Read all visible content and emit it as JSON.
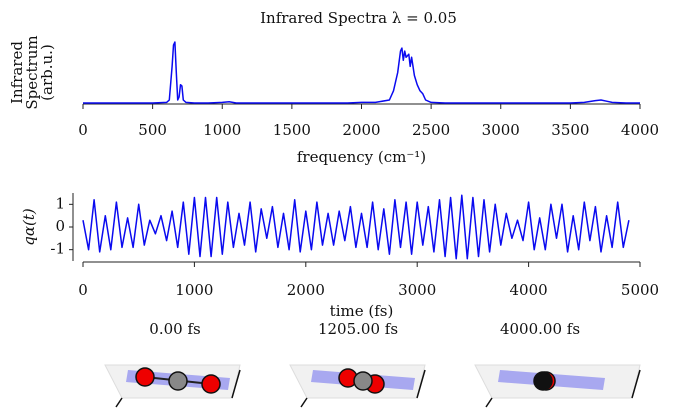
{
  "chart_data": [
    {
      "type": "line",
      "title": "Infrared Spectra λ = 0.05",
      "ylabel": [
        "Infrared",
        "Spectrum",
        "(arb.u.)"
      ],
      "xlabel": "frequency (cm⁻¹)",
      "color": "#0a0af0",
      "x": [
        0,
        100,
        200,
        300,
        400,
        500,
        600,
        620,
        640,
        650,
        660,
        670,
        680,
        690,
        700,
        710,
        720,
        740,
        800,
        900,
        1000,
        1050,
        1100,
        1200,
        1300,
        1400,
        1500,
        1600,
        1700,
        1800,
        1900,
        2000,
        2100,
        2200,
        2230,
        2260,
        2280,
        2290,
        2300,
        2310,
        2320,
        2340,
        2350,
        2360,
        2380,
        2400,
        2420,
        2440,
        2460,
        2500,
        2600,
        2700,
        2800,
        2900,
        3000,
        3100,
        3200,
        3300,
        3400,
        3500,
        3600,
        3680,
        3720,
        3760,
        3800,
        3900,
        4000
      ],
      "values": [
        0,
        0,
        0,
        0,
        0,
        0,
        0.01,
        0.05,
        0.6,
        0.95,
        1.0,
        0.5,
        0.05,
        0.1,
        0.3,
        0.28,
        0.05,
        0.01,
        0,
        0,
        0.01,
        0.02,
        0,
        0,
        0,
        0,
        0,
        0,
        0,
        0,
        0,
        0.01,
        0.01,
        0.05,
        0.2,
        0.5,
        0.85,
        0.9,
        0.7,
        0.85,
        0.75,
        0.8,
        0.6,
        0.75,
        0.45,
        0.3,
        0.2,
        0.15,
        0.05,
        0.01,
        0,
        0,
        0,
        0,
        0,
        0,
        0,
        0,
        0,
        0,
        0.01,
        0.04,
        0.05,
        0.03,
        0.01,
        0,
        0
      ],
      "xlim": [
        0,
        4000
      ],
      "xticks": [
        0,
        500,
        1000,
        1500,
        2000,
        2500,
        3000,
        3500,
        4000
      ],
      "ylim": [
        0,
        1
      ]
    },
    {
      "type": "line",
      "ylabel": "qα(t)",
      "xlabel": "time (fs)",
      "color": "#0a0af0",
      "x": [
        0,
        50,
        100,
        150,
        200,
        250,
        300,
        350,
        400,
        450,
        500,
        550,
        600,
        650,
        700,
        750,
        800,
        850,
        900,
        950,
        1000,
        1050,
        1100,
        1150,
        1200,
        1250,
        1300,
        1350,
        1400,
        1450,
        1500,
        1550,
        1600,
        1650,
        1700,
        1750,
        1800,
        1850,
        1900,
        1950,
        2000,
        2050,
        2100,
        2150,
        2200,
        2250,
        2300,
        2350,
        2400,
        2450,
        2500,
        2550,
        2600,
        2650,
        2700,
        2750,
        2800,
        2850,
        2900,
        2950,
        3000,
        3050,
        3100,
        3150,
        3200,
        3250,
        3300,
        3350,
        3400,
        3450,
        3500,
        3550,
        3600,
        3650,
        3700,
        3750,
        3800,
        3850,
        3900,
        3950,
        4000,
        4050,
        4100,
        4150,
        4200,
        4250,
        4300,
        4350,
        4400,
        4450,
        4500,
        4550,
        4600,
        4650,
        4700,
        4750,
        4800,
        4850,
        4900
      ],
      "values": [
        0.3,
        -1.0,
        1.2,
        -1.1,
        0.5,
        -1.0,
        1.1,
        -0.9,
        0.4,
        -0.9,
        1.0,
        -0.8,
        0.3,
        -0.3,
        0.5,
        -0.6,
        0.7,
        -0.9,
        1.1,
        -1.2,
        1.3,
        -1.3,
        1.3,
        -1.3,
        1.3,
        -1.2,
        1.1,
        -0.9,
        0.6,
        -0.8,
        1.1,
        -1.1,
        0.8,
        -0.5,
        0.9,
        -0.9,
        0.6,
        -1.0,
        1.2,
        -1.1,
        0.7,
        -1.0,
        1.1,
        -0.8,
        0.6,
        -0.8,
        0.7,
        -0.6,
        0.9,
        -0.9,
        0.6,
        -0.9,
        1.1,
        -1.0,
        0.8,
        -1.2,
        1.2,
        -0.9,
        1.1,
        -1.2,
        1.1,
        -0.8,
        0.9,
        -1.1,
        1.2,
        -1.3,
        1.3,
        -1.4,
        1.4,
        -1.4,
        1.3,
        -1.3,
        1.2,
        -1.1,
        1.0,
        -0.8,
        0.6,
        -0.5,
        0.3,
        -0.6,
        1.1,
        -1.0,
        0.4,
        -1.0,
        1.0,
        -0.5,
        1.0,
        -1.1,
        0.5,
        -1.0,
        1.1,
        -0.6,
        0.9,
        -1.1,
        0.5,
        -0.9,
        1.1,
        -0.9,
        0.3
      ],
      "xlim": [
        0,
        5000
      ],
      "xticks": [
        0,
        1000,
        2000,
        3000,
        4000,
        5000
      ],
      "ylim": [
        -1.5,
        1.5
      ],
      "yticks": [
        -1,
        0,
        1
      ]
    }
  ],
  "snapshots": [
    "0.00 fs",
    "1205.00 fs",
    "4000.00 fs"
  ]
}
